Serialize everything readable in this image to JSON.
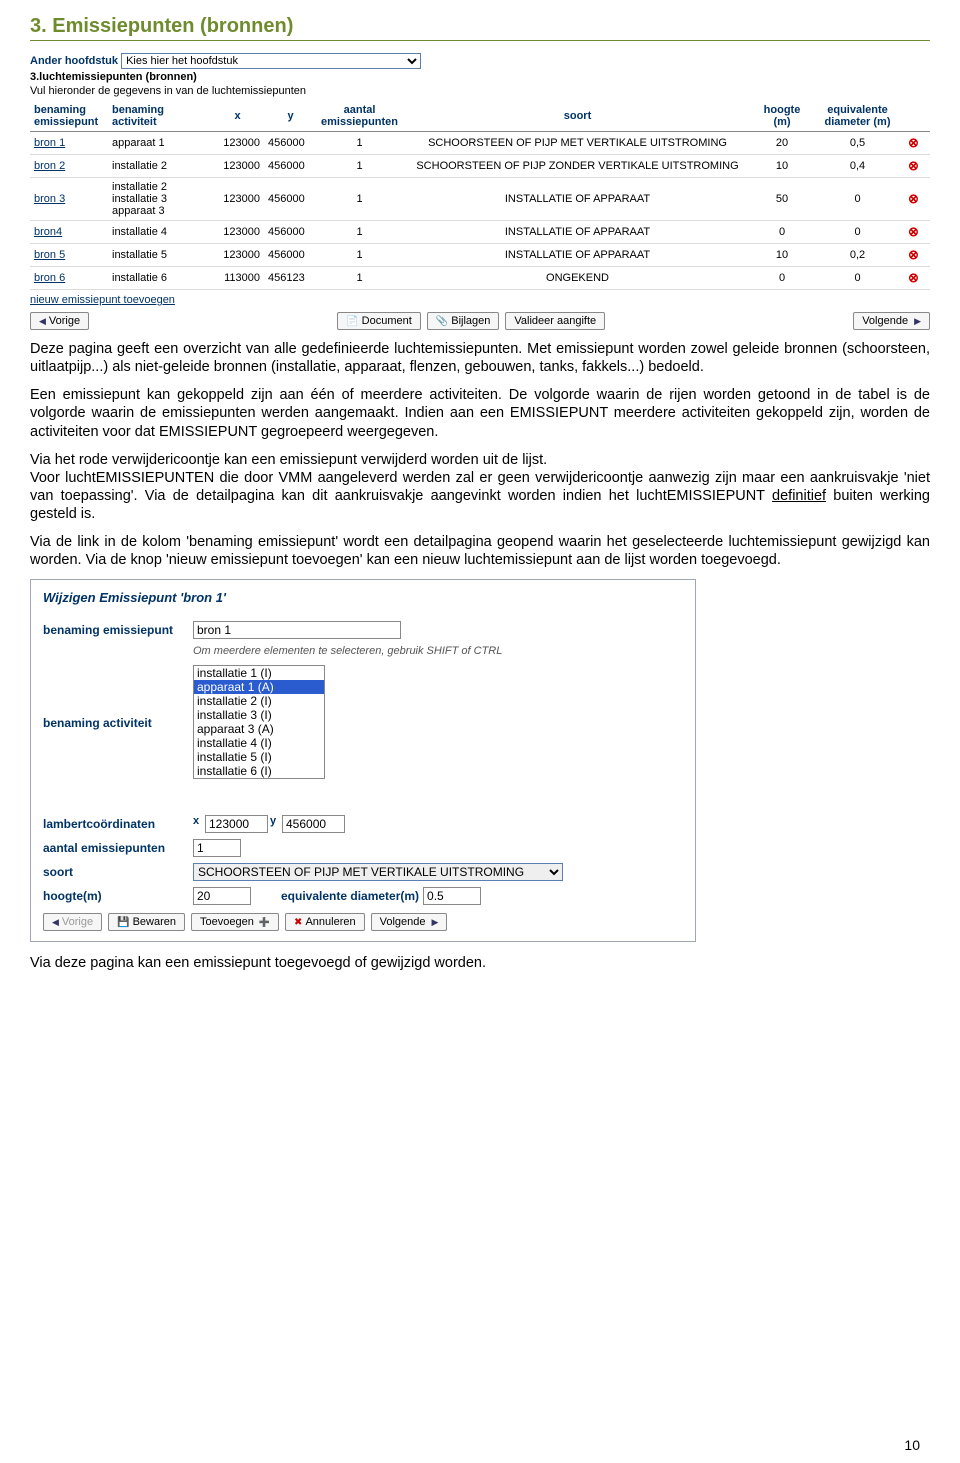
{
  "page": {
    "heading": "3. Emissiepunten (bronnen)",
    "page_number": "10"
  },
  "shot1": {
    "ander_hoofdstuk_label": "Ander hoofdstuk",
    "ander_hoofdstuk_value": "Kies hier het hoofdstuk",
    "subheader": "3.luchtemissiepunten (bronnen)",
    "instr": "Vul hieronder de gegevens in van de luchtemissiepunten",
    "cols": {
      "c1": "benaming emissiepunt",
      "c2": "benaming activiteit",
      "c3": "x",
      "c4": "y",
      "c5": "aantal emissiepunten",
      "c6": "soort",
      "c7": "hoogte (m)",
      "c8": "equivalente diameter (m)"
    },
    "rows": [
      {
        "bron": "bron 1",
        "act": "apparaat 1",
        "x": "123000",
        "y": "456000",
        "n": "1",
        "soort": "SCHOORSTEEN OF PIJP MET VERTIKALE UITSTROMING",
        "h": "20",
        "d": "0,5"
      },
      {
        "bron": "bron 2",
        "act": "installatie 2",
        "x": "123000",
        "y": "456000",
        "n": "1",
        "soort": "SCHOORSTEEN OF PIJP ZONDER VERTIKALE UITSTROMING",
        "h": "10",
        "d": "0,4"
      },
      {
        "bron": "bron 3",
        "act": "installatie 2\ninstallatie 3\napparaat 3",
        "x": "123000",
        "y": "456000",
        "n": "1",
        "soort": "INSTALLATIE OF APPARAAT",
        "h": "50",
        "d": "0"
      },
      {
        "bron": "bron4",
        "act": "installatie 4",
        "x": "123000",
        "y": "456000",
        "n": "1",
        "soort": "INSTALLATIE OF APPARAAT",
        "h": "0",
        "d": "0"
      },
      {
        "bron": "bron 5",
        "act": "installatie 5",
        "x": "123000",
        "y": "456000",
        "n": "1",
        "soort": "INSTALLATIE OF APPARAAT",
        "h": "10",
        "d": "0,2"
      },
      {
        "bron": "bron 6",
        "act": "installatie 6",
        "x": "113000",
        "y": "456123",
        "n": "1",
        "soort": "ONGEKEND",
        "h": "0",
        "d": "0"
      }
    ],
    "new_link": "nieuw emissiepunt toevoegen",
    "btn_vorige": "Vorige",
    "btn_document": "Document",
    "btn_bijlagen": "Bijlagen",
    "btn_valideer": "Valideer aangifte",
    "btn_volgende": "Volgende"
  },
  "body": {
    "p1": "Deze pagina geeft een overzicht van alle gedefinieerde luchtemissiepunten. Met emissiepunt worden zowel geleide bronnen (schoorsteen, uitlaatpijp...) als niet-geleide bronnen (installatie, apparaat, flenzen, gebouwen, tanks, fakkels...) bedoeld.",
    "p2": "Een emissiepunt kan gekoppeld zijn aan één of meerdere activiteiten. De volgorde waarin de rijen worden getoond in de tabel is de volgorde waarin de emissiepunten werden aangemaakt. Indien aan een EMISSIEPUNT meerdere activiteiten gekoppeld zijn, worden de activiteiten voor dat EMISSIEPUNT gegroepeerd weergegeven.",
    "p3a": "Via het rode verwijdericoontje kan een emissiepunt verwijderd worden uit de lijst.",
    "p3b": "Voor luchtEMISSIEPUNTEN die door VMM aangeleverd werden zal er geen verwijdericoontje aanwezig zijn maar een aankruisvakje 'niet van toepassing'. Via de detailpagina kan dit aankruisvakje aangevinkt worden indien het luchtEMISSIEPUNT ",
    "p3u": "definitief",
    "p3c": " buiten werking gesteld is.",
    "p4": "Via de link in de kolom 'benaming emissiepunt' wordt een detailpagina geopend waarin het geselecteerde luchtemissiepunt gewijzigd kan worden. Via de knop 'nieuw emissiepunt toevoegen' kan een nieuw luchtemissiepunt aan de lijst worden toegevoegd.",
    "p5": "Via deze pagina kan een emissiepunt toegevoegd of gewijzigd worden."
  },
  "form": {
    "title": "Wijzigen Emissiepunt 'bron 1'",
    "f_benaming_ep": "benaming emissiepunt",
    "v_benaming_ep": "bron 1",
    "note": "Om meerdere elementen te selecteren, gebruik SHIFT of CTRL",
    "f_benaming_act": "benaming activiteit",
    "act_list": [
      "installatie 1 (I)",
      "apparaat 1 (A)",
      "installatie 2 (I)",
      "installatie 3 (I)",
      "apparaat 3 (A)",
      "installatie 4 (I)",
      "installatie 5 (I)",
      "installatie 6 (I)"
    ],
    "act_selected_index": 1,
    "f_lambert": "lambertcoördinaten",
    "lbl_x": "x",
    "v_x": "123000",
    "lbl_y": "y",
    "v_y": "456000",
    "f_aantal": "aantal emissiepunten",
    "v_aantal": "1",
    "f_soort": "soort",
    "v_soort": "SCHOORSTEEN OF PIJP MET VERTIKALE UITSTROMING",
    "f_hoogte": "hoogte(m)",
    "v_hoogte": "20",
    "f_diameter": "equivalente diameter(m)",
    "v_diameter": "0.5",
    "btn_vorige": "Vorige",
    "btn_bewaren": "Bewaren",
    "btn_toevoegen": "Toevoegen",
    "btn_annuleren": "Annuleren",
    "btn_volgende": "Volgende"
  }
}
